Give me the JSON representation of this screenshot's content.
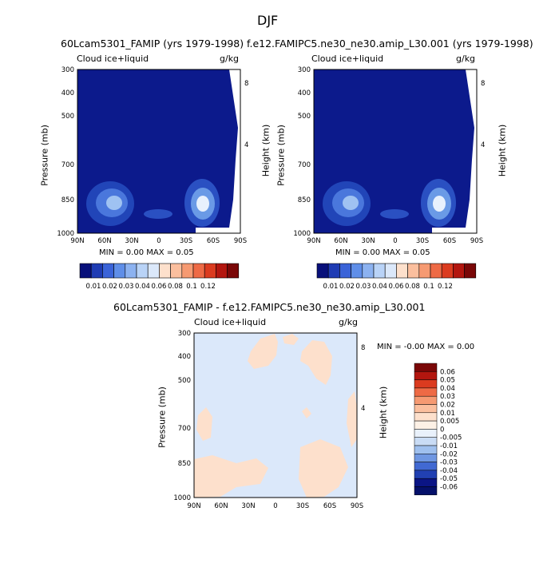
{
  "page_title": "DJF",
  "panels": [
    {
      "title": "60Lcam5301_FAMIP (yrs 1979-1998)",
      "left_label": "Cloud ice+liquid",
      "right_label": "g/kg",
      "min_max": "MIN =    0.00   MAX =    0.05"
    },
    {
      "title": "f.e12.FAMIPC5.ne30_ne30.amip_L30.001 (yrs 1979-1998)",
      "left_label": "Cloud ice+liquid",
      "right_label": "g/kg",
      "min_max": "MIN =    0.00   MAX =    0.05"
    },
    {
      "title": "60Lcam5301_FAMIP - f.e12.FAMIPC5.ne30_ne30.amip_L30.001",
      "left_label": "Cloud ice+liquid",
      "right_label": "g/kg",
      "min_max": "MIN =    -0.00    MAX =    0.00"
    }
  ],
  "axes": {
    "ylabel_left": "Pressure (mb)",
    "ylabel_right": "Height (km)",
    "pressure_ticks": [
      "300",
      "400",
      "500",
      "700",
      "850",
      "1000"
    ],
    "height_ticks": [
      "8",
      "4"
    ],
    "lat_ticks": [
      "90N",
      "60N",
      "30N",
      "0",
      "30S",
      "60S",
      "90S"
    ]
  },
  "colorbar_top": {
    "labels": [
      "0.01",
      "0.02",
      "0.03",
      "0.04",
      "0.06",
      "0.08",
      "0.1",
      "0.12"
    ],
    "colors": [
      "#08107a",
      "#1f3cb4",
      "#3a63d8",
      "#5f8ee8",
      "#8cb2f0",
      "#b9d3f7",
      "#dbe8fa",
      "#fde0cc",
      "#fbbf9e",
      "#f69a72",
      "#ee6a45",
      "#db3b1f",
      "#b3160f",
      "#7a0707"
    ]
  },
  "colorbar_diff": {
    "labels": [
      "0.06",
      "0.05",
      "0.04",
      "0.03",
      "0.02",
      "0.01",
      "0.005",
      "0",
      "-0.005",
      "-0.01",
      "-0.02",
      "-0.03",
      "-0.04",
      "-0.05",
      "-0.06"
    ],
    "colors": [
      "#7a0707",
      "#b3160f",
      "#db3b1f",
      "#ee6a45",
      "#f69a72",
      "#fbbf9e",
      "#fde0cc",
      "#fdf1e6",
      "#e9f1fb",
      "#c9dcf5",
      "#9fc0ee",
      "#6f97e2",
      "#4169d2",
      "#2140b2",
      "#0b1585",
      "#05106a"
    ]
  },
  "chart_data": [
    {
      "type": "heatmap",
      "title": "60Lcam5301_FAMIP (yrs 1979-1998)",
      "variable": "Cloud ice+liquid",
      "units": "g/kg",
      "x_ticks": [
        "90N",
        "60N",
        "30N",
        "0",
        "30S",
        "60S",
        "90S"
      ],
      "y_ticks_pressure_mb": [
        300,
        400,
        500,
        700,
        850,
        1000
      ],
      "y_ticks_height_km": [
        8,
        4
      ],
      "min": 0.0,
      "max": 0.05,
      "maxima": [
        {
          "lat": "48N",
          "pressure_mb": 850,
          "value": 0.04
        },
        {
          "lat": "53S",
          "pressure_mb": 860,
          "value": 0.05
        }
      ]
    },
    {
      "type": "heatmap",
      "title": "f.e12.FAMIPC5.ne30_ne30.amip_L30.001 (yrs 1979-1998)",
      "variable": "Cloud ice+liquid",
      "units": "g/kg",
      "x_ticks": [
        "90N",
        "60N",
        "30N",
        "0",
        "30S",
        "60S",
        "90S"
      ],
      "y_ticks_pressure_mb": [
        300,
        400,
        500,
        700,
        850,
        1000
      ],
      "y_ticks_height_km": [
        8,
        4
      ],
      "min": 0.0,
      "max": 0.05,
      "maxima": [
        {
          "lat": "48N",
          "pressure_mb": 850,
          "value": 0.04
        },
        {
          "lat": "53S",
          "pressure_mb": 860,
          "value": 0.05
        }
      ]
    },
    {
      "type": "heatmap",
      "title": "60Lcam5301_FAMIP - f.e12.FAMIPC5.ne30_ne30.amip_L30.001",
      "variable": "Cloud ice+liquid",
      "units": "g/kg",
      "x_ticks": [
        "90N",
        "60N",
        "30N",
        "0",
        "30S",
        "60S",
        "90S"
      ],
      "y_ticks_pressure_mb": [
        300,
        400,
        500,
        700,
        850,
        1000
      ],
      "y_ticks_height_km": [
        8,
        4
      ],
      "min": -0.0,
      "max": 0.0
    }
  ]
}
